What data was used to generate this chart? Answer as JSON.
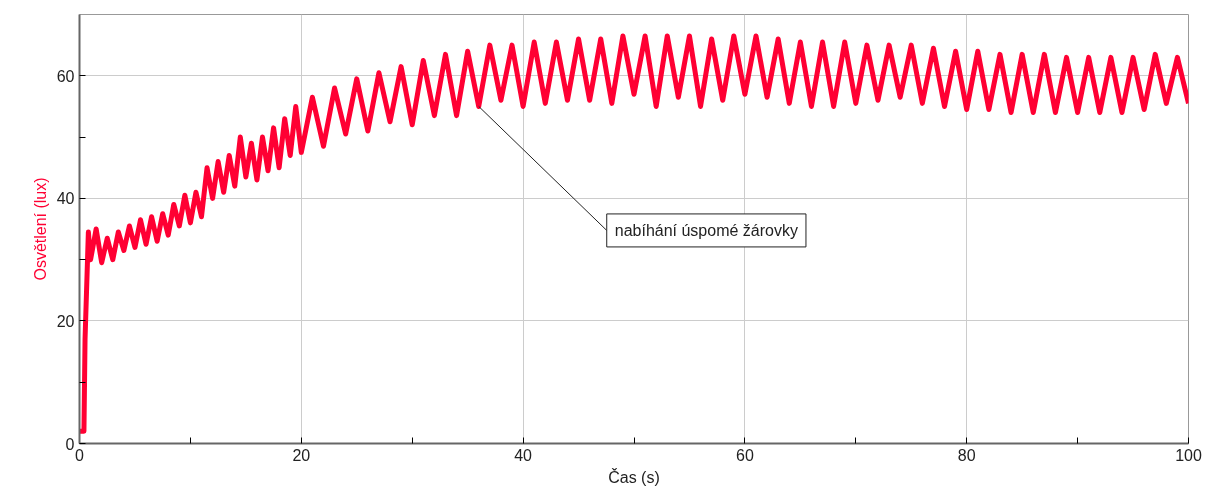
{
  "chart_data": {
    "type": "line",
    "xlabel": "Čas (s)",
    "ylabel": "Osvětlení (lux)",
    "xlim": [
      0,
      100
    ],
    "ylim": [
      0,
      70
    ],
    "xticks": [
      0,
      {
        "value": 10,
        "label": null
      },
      20,
      {
        "value": 30,
        "label": null
      },
      40,
      {
        "value": 50,
        "label": null
      },
      60,
      {
        "value": 70,
        "label": null
      },
      80,
      {
        "value": 90,
        "label": null
      },
      100
    ],
    "yticks": [
      0,
      {
        "value": 10,
        "label": null
      },
      20,
      {
        "value": 30,
        "label": null
      },
      40,
      {
        "value": 50,
        "label": null
      },
      60
    ],
    "grid": true,
    "marker": "none",
    "line_style": "solid",
    "annotations": [
      {
        "text": "nabíhání úspomé žárovky",
        "x": 36,
        "y": 55
      }
    ],
    "series": [
      {
        "color": "#ff0033",
        "x": [
          0,
          0.4,
          0.5,
          0.8,
          1,
          1.5,
          2,
          2.5,
          3,
          3.5,
          4,
          4.5,
          5,
          5.5,
          6,
          6.5,
          7,
          7.5,
          8,
          8.5,
          9,
          9.5,
          10,
          10.5,
          11,
          11.5,
          12,
          12.5,
          13,
          13.5,
          14,
          14.5,
          15,
          15.5,
          16,
          16.5,
          17,
          17.5,
          18,
          18.5,
          19,
          19.5,
          20,
          21,
          22,
          23,
          24,
          25,
          26,
          27,
          28,
          29,
          30,
          31,
          32,
          33,
          34,
          35,
          36,
          37,
          38,
          39,
          40,
          41,
          42,
          43,
          44,
          45,
          46,
          47,
          48,
          49,
          50,
          51,
          52,
          53,
          54,
          55,
          56,
          57,
          58,
          59,
          60,
          61,
          62,
          63,
          64,
          65,
          66,
          67,
          68,
          69,
          70,
          71,
          72,
          73,
          74,
          75,
          76,
          77,
          78,
          79,
          80,
          81,
          82,
          83,
          84,
          85,
          86,
          87,
          88,
          89,
          90,
          91,
          92,
          93,
          94,
          95,
          96,
          97,
          98,
          99,
          100
        ],
        "values": [
          2,
          2,
          17,
          34.5,
          30,
          35,
          29.5,
          33.5,
          30,
          34.5,
          31.5,
          35.5,
          32,
          36.5,
          32.5,
          37,
          33,
          37.5,
          34,
          39,
          35.5,
          40.5,
          36,
          41,
          37,
          45,
          40,
          46,
          41,
          47,
          42,
          50,
          43.5,
          49,
          43,
          50,
          44.5,
          51.5,
          45,
          53,
          47,
          55,
          47.5,
          56.5,
          48.5,
          58,
          50.5,
          59.5,
          51,
          60.5,
          52.5,
          61.5,
          52,
          62.5,
          53.5,
          63.5,
          53.5,
          64,
          55,
          65,
          56,
          65,
          55,
          65.5,
          55.5,
          65.5,
          56,
          66,
          56,
          66,
          55.5,
          66.5,
          57,
          66.5,
          55,
          66.5,
          56.5,
          66.5,
          55,
          66,
          56,
          66.5,
          57,
          66.5,
          56.5,
          66,
          55.5,
          65.5,
          55,
          65.5,
          55,
          65.5,
          55.5,
          65,
          56,
          65,
          56.5,
          65,
          55.5,
          64.5,
          55,
          64,
          54.5,
          64,
          54.5,
          63.5,
          54,
          63.5,
          54,
          63.5,
          54,
          63,
          54,
          63,
          54,
          63,
          54,
          63,
          54.5,
          63.5,
          55.5,
          63,
          55.5
        ]
      }
    ]
  }
}
